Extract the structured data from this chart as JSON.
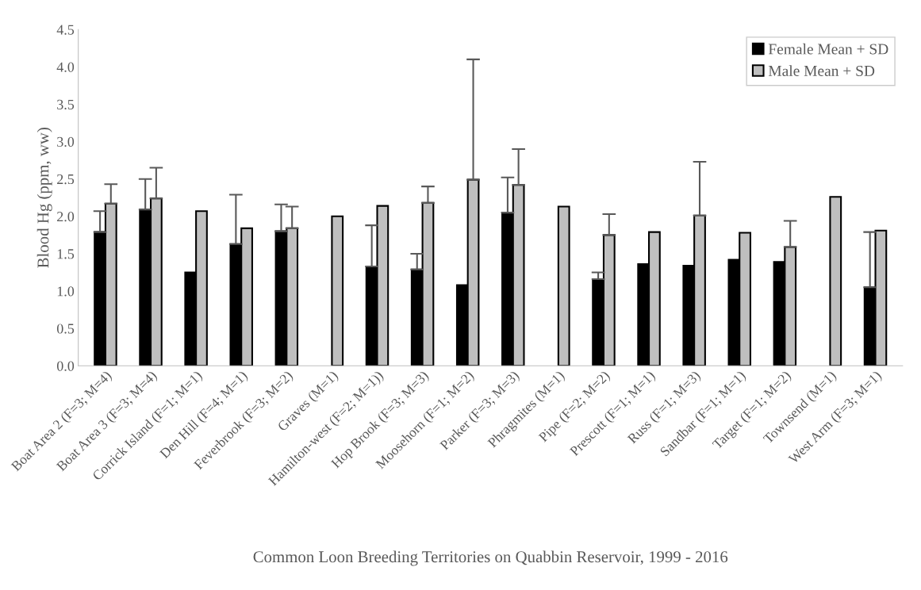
{
  "chart_data": {
    "type": "bar",
    "xlabel": "Common Loon Breeding Territories on Quabbin Reservoir, 1999 - 2016",
    "ylabel": "Blood Hg (ppm, ww)",
    "categories": [
      "Boat Area 2 (F=3; M=4)",
      "Boat Area 3 (F=3; M=4)",
      "Corrick Island (F=1; M=1)",
      "Den Hill (F=4; M=1)",
      "Feverbrook (F=3; M=2)",
      "Graves (M=1)",
      "Hamilton-west (F=2; M=1))",
      "Hop Brook (F=3; M=3)",
      "Moosehorn (F=1; M=2)",
      "Parker (F=3; M=3)",
      "Phragmites (M=1)",
      "Pipe (F=2; M=2)",
      "Prescott (F=1; M=1)",
      "Russ (F=1; M=3)",
      "Sandbar (F=1; M=1)",
      "Target (F=1; M=2)",
      "Townsend (M=1)",
      "West Arm (F=3; M=1)"
    ],
    "series": [
      {
        "name": "Female Mean + SD",
        "color": "#000000",
        "values": [
          1.79,
          2.09,
          1.25,
          1.63,
          1.8,
          null,
          1.33,
          1.29,
          1.08,
          2.05,
          null,
          1.16,
          1.36,
          1.34,
          1.42,
          1.39,
          null,
          1.05
        ],
        "errors": [
          [
            1.79,
            2.07
          ],
          [
            2.09,
            2.5
          ],
          null,
          [
            1.63,
            2.29
          ],
          [
            1.8,
            2.16
          ],
          null,
          [
            1.33,
            1.88
          ],
          [
            1.29,
            1.5
          ],
          null,
          [
            2.05,
            2.52
          ],
          null,
          [
            1.16,
            1.25
          ],
          null,
          null,
          null,
          null,
          null,
          [
            1.05,
            1.79
          ]
        ]
      },
      {
        "name": "Male Mean + SD",
        "color": "#bfbfbf",
        "values": [
          2.17,
          2.24,
          2.07,
          1.84,
          1.84,
          2.0,
          2.14,
          2.18,
          2.49,
          2.42,
          2.13,
          1.75,
          1.79,
          2.01,
          1.78,
          1.59,
          2.26,
          1.81
        ],
        "errors": [
          [
            2.17,
            2.43
          ],
          [
            2.24,
            2.65
          ],
          null,
          null,
          [
            1.84,
            2.13
          ],
          null,
          null,
          [
            2.18,
            2.4
          ],
          [
            2.49,
            4.1
          ],
          [
            2.42,
            2.9
          ],
          null,
          [
            1.75,
            2.03
          ],
          null,
          [
            2.01,
            2.73
          ],
          null,
          [
            1.59,
            1.94
          ],
          null,
          null
        ]
      }
    ],
    "ylim": [
      0,
      4.5
    ],
    "yticks": [
      {
        "value": 0,
        "label": "0.0"
      },
      {
        "value": 0.5,
        "label": "0.5"
      },
      {
        "value": 1,
        "label": "1.0"
      },
      {
        "value": 1.5,
        "label": "1.5"
      },
      {
        "value": 2,
        "label": "2.0"
      },
      {
        "value": 2.5,
        "label": "2.5"
      },
      {
        "value": 3,
        "label": "3.0"
      },
      {
        "value": 3.5,
        "label": "3.5"
      },
      {
        "value": 4,
        "label": "4.0"
      },
      {
        "value": 4.5,
        "label": "4.5"
      }
    ],
    "legend": "top right",
    "grid": false
  }
}
